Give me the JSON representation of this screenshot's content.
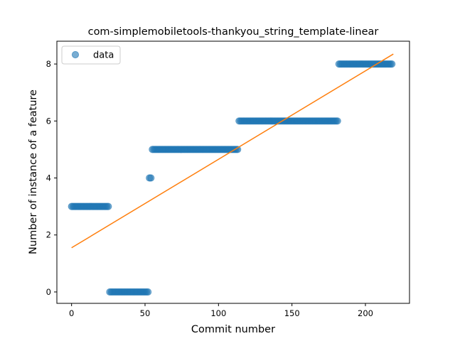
{
  "chart_data": {
    "type": "scatter",
    "title": "com-simplemobiletools-thankyou_string_template-linear",
    "xlabel": "Commit number",
    "ylabel": "Number of instance of a feature",
    "xlim": [
      -10,
      230
    ],
    "ylim": [
      -0.4,
      8.8
    ],
    "xticks": [
      0,
      50,
      100,
      150,
      200
    ],
    "yticks": [
      0,
      2,
      4,
      6,
      8
    ],
    "grid": false,
    "legend_position": "upper-left",
    "series": [
      {
        "name": "data",
        "kind": "scatter",
        "color": "#1f77b4",
        "segments": [
          {
            "x_start": 0,
            "x_end": 26,
            "y": 3
          },
          {
            "x_start": 26,
            "x_end": 53,
            "y": 0
          },
          {
            "x_start": 53,
            "x_end": 55,
            "y": 4
          },
          {
            "x_start": 55,
            "x_end": 114,
            "y": 5
          },
          {
            "x_start": 114,
            "x_end": 182,
            "y": 6
          },
          {
            "x_start": 182,
            "x_end": 219,
            "y": 8
          }
        ]
      },
      {
        "kind": "line",
        "color": "#ff7f0e",
        "x": [
          0,
          219
        ],
        "y": [
          1.55,
          8.35
        ]
      }
    ]
  }
}
